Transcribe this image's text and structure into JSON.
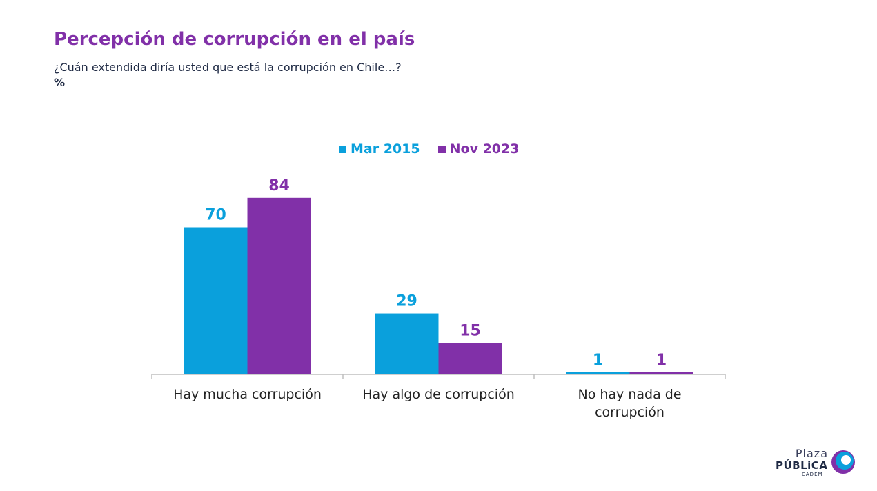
{
  "header": {
    "title": "Percepción de corrupción en el país",
    "subtitle": "¿Cuán extendida diría usted que está la corrupción en Chile…?",
    "unit": "%"
  },
  "logo": {
    "line1": "Plaza",
    "line2": "PÚBLiCA",
    "line3": "CADEM"
  },
  "colors": {
    "series1": "#0aa0dc",
    "series2": "#8130a8",
    "axis": "#bfbfbf",
    "category_text": "#222222"
  },
  "chart_data": {
    "type": "bar",
    "categories": [
      [
        "Hay mucha corrupción"
      ],
      [
        "Hay algo de corrupción"
      ],
      [
        "No hay nada de",
        "corrupción"
      ]
    ],
    "series": [
      {
        "name": "Mar 2015",
        "values": [
          70,
          29,
          1
        ]
      },
      {
        "name": "Nov 2023",
        "values": [
          84,
          15,
          1
        ]
      }
    ],
    "ylim": [
      0,
      100
    ],
    "grid": false,
    "legend_position": "top-center",
    "data_labels": true
  }
}
